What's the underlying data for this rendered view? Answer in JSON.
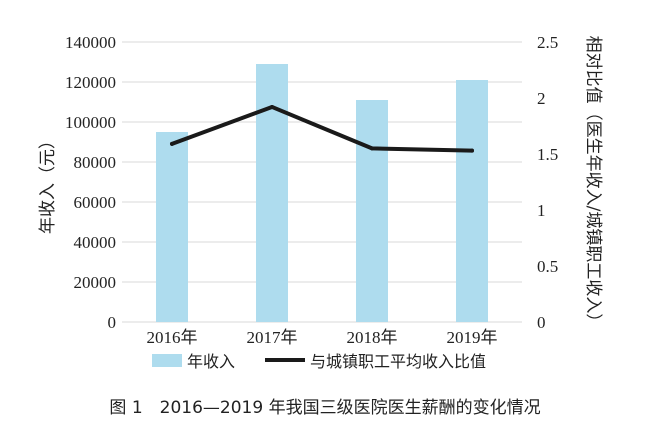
{
  "chart_data": {
    "type": "bar",
    "categories": [
      "2016年",
      "2017年",
      "2018年",
      "2019年"
    ],
    "series": [
      {
        "name": "年收入",
        "type": "bar",
        "axis": "left",
        "values": [
          95000,
          129000,
          111000,
          121000
        ],
        "color": "#aedcee"
      },
      {
        "name": "与城镇职工平均收入比值",
        "type": "line",
        "axis": "right",
        "values": [
          1.59,
          1.92,
          1.55,
          1.53
        ],
        "color": "#1a1a1a"
      }
    ],
    "ylabel": "年收入（元）",
    "y2label": "相对比值（医生年收入/城镇职工收入）",
    "ylim": [
      0,
      140000
    ],
    "yticks": [
      0,
      20000,
      40000,
      60000,
      80000,
      100000,
      120000,
      140000
    ],
    "y2lim": [
      0,
      2.5
    ],
    "y2ticks": [
      "0",
      "0.5",
      "1",
      "1.5",
      "2",
      "2.5"
    ],
    "grid": true,
    "legend": "bottom"
  },
  "caption": "图 1　2016—2019 年我国三级医院医生薪酬的变化情况"
}
